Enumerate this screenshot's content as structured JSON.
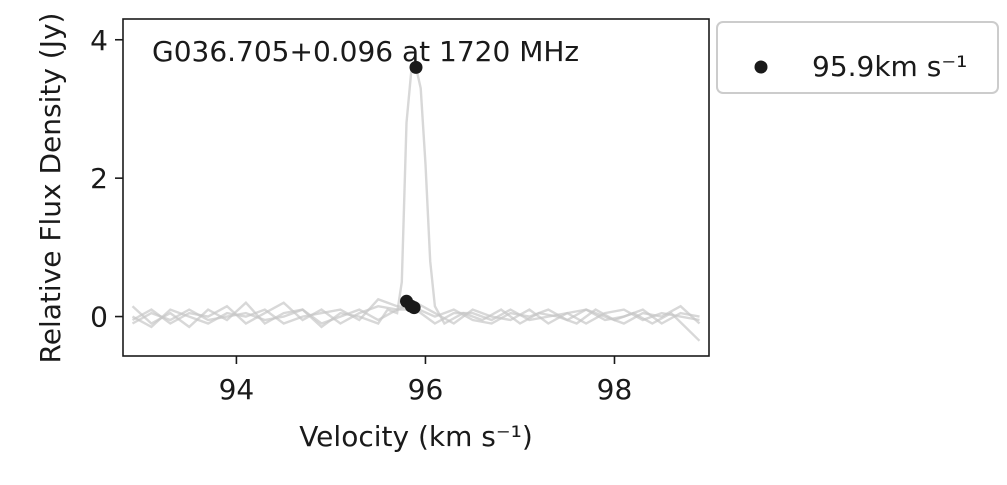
{
  "chart_data": {
    "type": "line",
    "title": "G036.705+0.096 at 1720 MHz",
    "xlabel": "Velocity (km s⁻¹)",
    "ylabel": "Relative Flux Density (Jy)",
    "xlim": [
      92.8,
      99.0
    ],
    "ylim": [
      -0.57,
      4.3
    ],
    "xticks": [
      94,
      96,
      98
    ],
    "yticks": [
      0,
      2,
      4
    ],
    "grid": false,
    "legend": {
      "placement": "outside-top-right",
      "entries": [
        "95.9km s⁻¹"
      ]
    },
    "colors": {
      "spectra": "#c8c8c8",
      "marker": "#1a1a1a",
      "axes": "#1a1a1a",
      "legend_border": "#cccccc"
    },
    "series": [
      {
        "x": [
          92.9,
          93.1,
          93.3,
          93.5,
          93.7,
          93.9,
          94.1,
          94.3,
          94.5,
          94.7,
          94.9,
          95.1,
          95.3,
          95.5,
          95.6,
          95.7,
          95.75,
          95.8,
          95.85,
          95.9,
          95.95,
          96.0,
          96.05,
          96.1,
          96.2,
          96.4,
          96.6,
          96.8,
          97.0,
          97.2,
          97.4,
          97.6,
          97.8,
          98.0,
          98.2,
          98.4,
          98.6,
          98.9
        ],
        "values": [
          0.15,
          -0.1,
          0.05,
          -0.15,
          0.1,
          -0.05,
          0.2,
          -0.1,
          0.05,
          0.1,
          -0.15,
          0.05,
          0.0,
          -0.1,
          0.1,
          0.05,
          0.5,
          2.8,
          3.55,
          3.6,
          3.3,
          2.2,
          0.8,
          0.15,
          -0.1,
          0.05,
          -0.05,
          0.1,
          -0.1,
          0.05,
          0.0,
          -0.1,
          0.1,
          -0.05,
          0.05,
          -0.1,
          0.05,
          -0.35
        ]
      },
      {
        "x": [
          92.9,
          93.1,
          93.3,
          93.5,
          93.7,
          93.9,
          94.1,
          94.3,
          94.5,
          94.7,
          94.9,
          95.1,
          95.3,
          95.5,
          95.7,
          95.9,
          96.1,
          96.3,
          96.5,
          96.7,
          96.9,
          97.1,
          97.3,
          97.5,
          97.7,
          97.9,
          98.1,
          98.3,
          98.5,
          98.7,
          98.9
        ],
        "values": [
          -0.05,
          0.1,
          -0.1,
          0.05,
          0.0,
          0.15,
          -0.1,
          0.05,
          0.2,
          -0.05,
          0.1,
          -0.1,
          0.05,
          0.15,
          0.1,
          0.2,
          0.05,
          -0.1,
          0.1,
          0.0,
          -0.05,
          0.1,
          -0.1,
          0.05,
          0.1,
          -0.05,
          0.0,
          0.1,
          -0.1,
          0.05,
          0.0
        ]
      },
      {
        "x": [
          92.9,
          93.1,
          93.3,
          93.5,
          93.7,
          93.9,
          94.1,
          94.3,
          94.5,
          94.7,
          94.9,
          95.1,
          95.3,
          95.5,
          95.7,
          95.9,
          96.1,
          96.3,
          96.5,
          96.7,
          96.9,
          97.1,
          97.3,
          97.5,
          97.7,
          97.9,
          98.1,
          98.3,
          98.5,
          98.7,
          98.9
        ],
        "values": [
          0.0,
          -0.15,
          0.1,
          0.0,
          -0.1,
          0.05,
          0.0,
          0.1,
          -0.1,
          0.0,
          0.05,
          0.1,
          -0.05,
          0.25,
          0.15,
          0.12,
          0.0,
          0.1,
          -0.05,
          -0.1,
          0.05,
          0.0,
          0.1,
          -0.05,
          0.1,
          0.0,
          -0.1,
          0.05,
          0.0,
          0.15,
          -0.1
        ]
      },
      {
        "x": [
          92.9,
          93.1,
          93.3,
          93.5,
          93.7,
          93.9,
          94.1,
          94.3,
          94.5,
          94.7,
          94.9,
          95.1,
          95.3,
          95.5,
          95.7,
          95.9,
          96.1,
          96.3,
          96.5,
          96.7,
          96.9,
          97.1,
          97.3,
          97.5,
          97.7,
          97.9,
          98.1,
          98.3,
          98.5,
          98.7,
          98.9
        ],
        "values": [
          -0.1,
          0.05,
          -0.05,
          0.1,
          -0.05,
          0.0,
          0.05,
          -0.05,
          0.0,
          0.1,
          -0.1,
          0.0,
          0.1,
          -0.05,
          0.1,
          0.1,
          -0.1,
          0.05,
          0.05,
          -0.05,
          0.1,
          -0.05,
          0.0,
          0.05,
          -0.1,
          0.05,
          0.1,
          -0.05,
          0.05,
          0.0,
          -0.05
        ]
      }
    ],
    "markers": [
      {
        "x": 95.9,
        "y": 3.6
      },
      {
        "x": 95.8,
        "y": 0.22
      },
      {
        "x": 95.85,
        "y": 0.15
      },
      {
        "x": 95.88,
        "y": 0.13
      }
    ]
  }
}
